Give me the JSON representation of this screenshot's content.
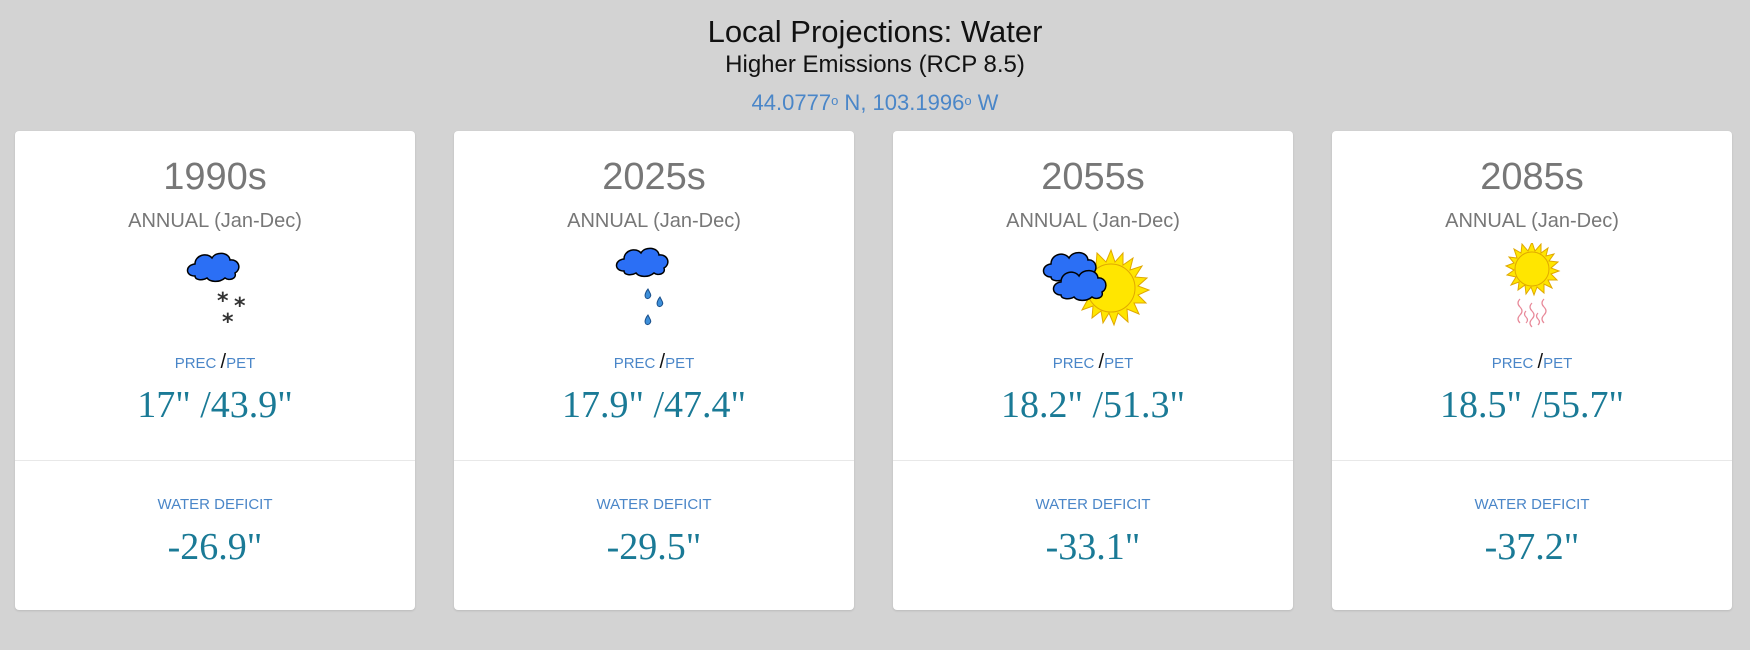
{
  "header": {
    "title": "Local Projections: Water",
    "subtitle": "Higher Emissions (RCP 8.5)",
    "lat": "44.0777",
    "lat_unit": "o",
    "lat_dir": " N, ",
    "lon": "103.1996",
    "lon_unit": "o",
    "lon_dir": " W"
  },
  "labels": {
    "prec": "PREC",
    "sep": "/",
    "pet": "PET",
    "deficit": "WATER DEFICIT"
  },
  "cards": [
    {
      "period": "1990s",
      "season": "ANNUAL (Jan-Dec)",
      "icon": "cloud-snow-icon",
      "values": "17\" /43.9\"",
      "deficit": "-26.9\""
    },
    {
      "period": "2025s",
      "season": "ANNUAL (Jan-Dec)",
      "icon": "cloud-rain-icon",
      "values": "17.9\" /47.4\"",
      "deficit": "-29.5\""
    },
    {
      "period": "2055s",
      "season": "ANNUAL (Jan-Dec)",
      "icon": "partly-cloudy-icon",
      "values": "18.2\" /51.3\"",
      "deficit": "-33.1\""
    },
    {
      "period": "2085s",
      "season": "ANNUAL (Jan-Dec)",
      "icon": "sun-heat-icon",
      "values": "18.5\" /55.7\"",
      "deficit": "-37.2\""
    }
  ],
  "colors": {
    "background": "#d3d3d3",
    "accent": "#4a86c8",
    "value": "#1a7a96",
    "cloud": "#2b6ff5",
    "sun": "#ffe600"
  }
}
